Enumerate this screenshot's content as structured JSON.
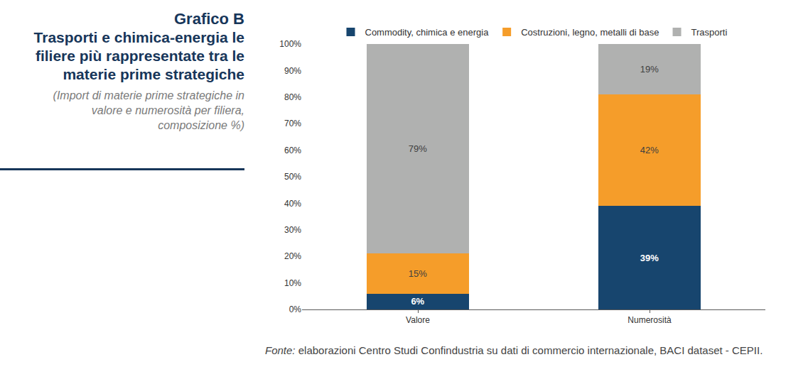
{
  "chart_data": {
    "type": "bar",
    "title": "Grafico B",
    "subtitle": "Trasporti e chimica-energia le filiere più rappresentate tra le materie prime strategiche",
    "note": "(Import di materie prime strategiche in valore e numerosità per filiera, composizione %)",
    "source_label": "Fonte:",
    "source": "elaborazioni Centro Studi Confindustria su dati di commercio internazionale, BACI dataset - CEPII.",
    "categories": [
      "Valore",
      "Numerosità"
    ],
    "series": [
      {
        "name": "Commodity, chimica e energia",
        "color": "#17456e",
        "values": [
          6,
          39
        ],
        "value_labels": [
          "6%",
          "39%"
        ]
      },
      {
        "name": "Costruzioni, legno, metalli di base",
        "color": "#f59d2a",
        "values": [
          15,
          42
        ],
        "value_labels": [
          "15%",
          "42%"
        ]
      },
      {
        "name": "Trasporti",
        "color": "#b0b1b0",
        "values": [
          79,
          19
        ],
        "value_labels": [
          "79%",
          "19%"
        ]
      }
    ],
    "stacked": true,
    "data_labels": true,
    "legend": "top",
    "grid": false,
    "ylim": [
      0,
      100
    ],
    "yticks": [
      {
        "value": 0,
        "label": "0%"
      },
      {
        "value": 10,
        "label": "10%"
      },
      {
        "value": 20,
        "label": "20%"
      },
      {
        "value": 30,
        "label": "30%"
      },
      {
        "value": 40,
        "label": "40%"
      },
      {
        "value": 50,
        "label": "50%"
      },
      {
        "value": 60,
        "label": "60%"
      },
      {
        "value": 70,
        "label": "70%"
      },
      {
        "value": 80,
        "label": "80%"
      },
      {
        "value": 90,
        "label": "90%"
      },
      {
        "value": 100,
        "label": "100%"
      }
    ]
  }
}
